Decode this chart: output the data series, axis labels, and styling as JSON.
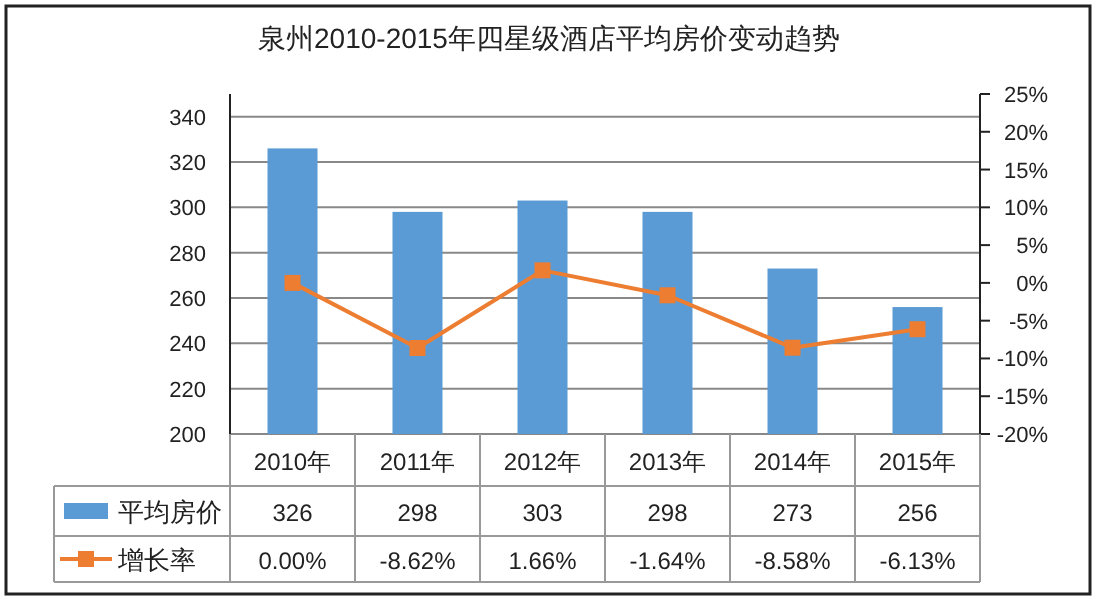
{
  "chart_data": {
    "type": "bar",
    "title": "泉州2010-2015年四星级酒店平均房价变动趋势",
    "categories": [
      "2010年",
      "2011年",
      "2012年",
      "2013年",
      "2014年",
      "2015年"
    ],
    "series": [
      {
        "name": "平均房价",
        "color": "#5b9bd5",
        "values": [
          326,
          298,
          303,
          298,
          273,
          256
        ],
        "value_labels": [
          "326",
          "298",
          "303",
          "298",
          "273",
          "256"
        ]
      },
      {
        "name": "增长率",
        "type": "line",
        "axis": "y2",
        "color": "#ed7d31",
        "marker": "square",
        "values": [
          0.0,
          -8.62,
          1.66,
          -1.64,
          -8.58,
          -6.13
        ],
        "value_labels": [
          "0.00%",
          "-8.62%",
          "1.66%",
          "-1.64%",
          "-8.58%",
          "-6.13%"
        ]
      }
    ],
    "ylim": [
      200,
      350
    ],
    "yticks": [
      200,
      220,
      240,
      260,
      280,
      300,
      320,
      340
    ],
    "y2lim": [
      -20,
      25
    ],
    "y2ticks": [
      {
        "value": -20,
        "label": "-20%"
      },
      {
        "value": -15,
        "label": "-15%"
      },
      {
        "value": -10,
        "label": "-10%"
      },
      {
        "value": -5,
        "label": "-5%"
      },
      {
        "value": 0,
        "label": "0%"
      },
      {
        "value": 5,
        "label": "5%"
      },
      {
        "value": 10,
        "label": "10%"
      },
      {
        "value": 15,
        "label": "15%"
      },
      {
        "value": 20,
        "label": "20%"
      },
      {
        "value": 25,
        "label": "25%"
      }
    ],
    "grid": "y",
    "legend": "bottom left"
  }
}
